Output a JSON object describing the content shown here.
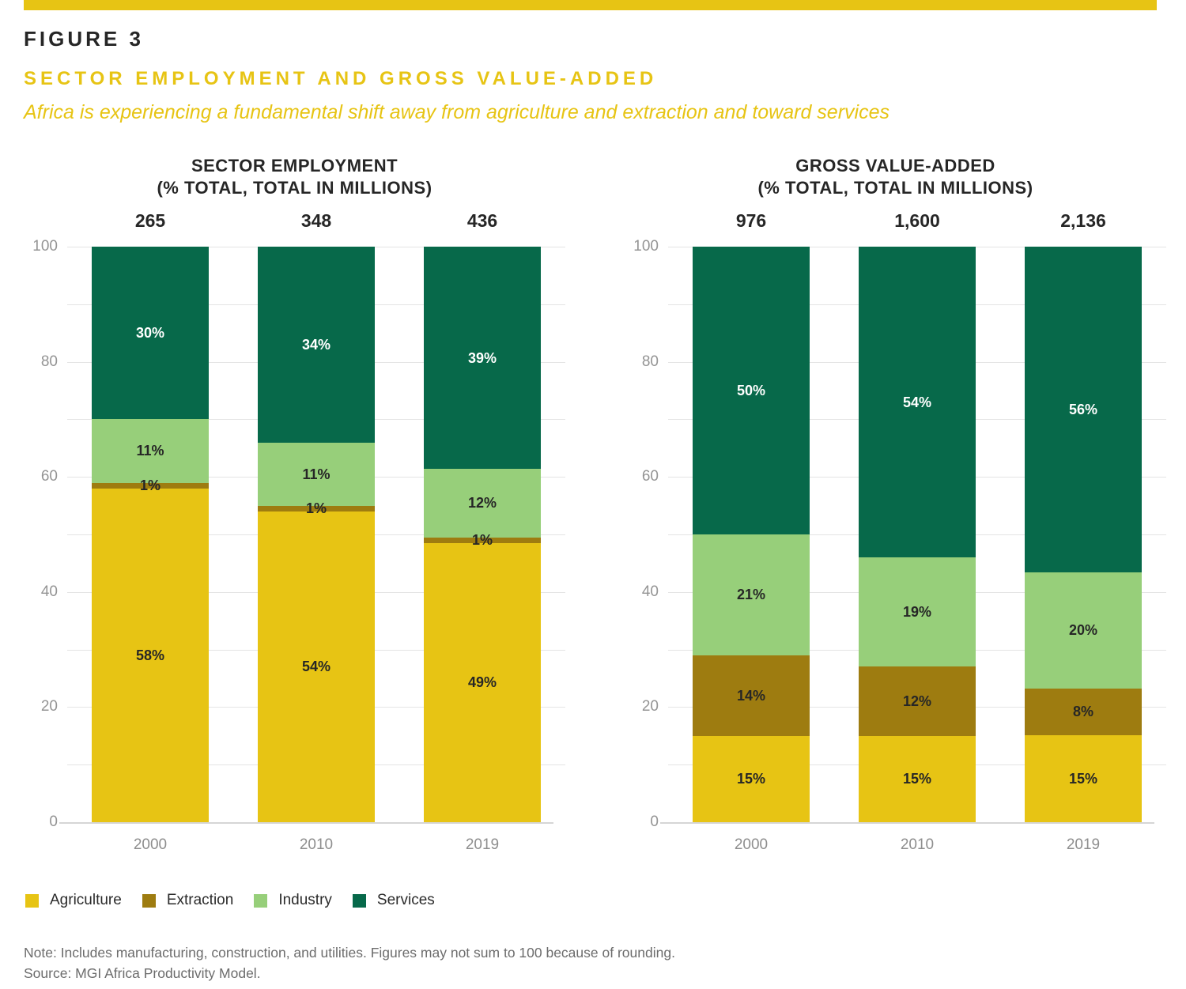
{
  "figure": {
    "label": "FIGURE 3",
    "title": "SECTOR EMPLOYMENT AND GROSS VALUE-ADDED",
    "subtitle": "Africa is experiencing a fundamental shift away from agriculture and extraction and toward services"
  },
  "colors": {
    "accent_yellow": "#e7c414",
    "agriculture": "#e7c414",
    "extraction": "#9e7c10",
    "industry": "#97cf7a",
    "services": "#07694a",
    "heading_text": "#262626",
    "axis_text": "#949494",
    "gridline": "#e4e4e4",
    "footer_text": "#6c6c6c"
  },
  "chart_data": [
    {
      "type": "bar",
      "stacked": true,
      "title": "SECTOR EMPLOYMENT",
      "units_line": "(% TOTAL, TOTAL IN MILLIONS)",
      "categories": [
        "2000",
        "2010",
        "2019"
      ],
      "totals": [
        "265",
        "348",
        "436"
      ],
      "series": [
        {
          "name": "Agriculture",
          "color": "#e7c414",
          "label_color": "#262626",
          "values": [
            58,
            54,
            49
          ]
        },
        {
          "name": "Extraction",
          "color": "#9e7c10",
          "label_color": "#262626",
          "values": [
            1,
            1,
            1
          ]
        },
        {
          "name": "Industry",
          "color": "#97cf7a",
          "label_color": "#262626",
          "values": [
            11,
            11,
            12
          ]
        },
        {
          "name": "Services",
          "color": "#07694a",
          "label_color": "#ffffff",
          "values": [
            30,
            34,
            39
          ]
        }
      ],
      "ylim": [
        0,
        100
      ],
      "ytick_labels": [
        0,
        20,
        40,
        60,
        80,
        100
      ],
      "grid_step": 10,
      "grid": true,
      "legend_position": "bottom"
    },
    {
      "type": "bar",
      "stacked": true,
      "title": "GROSS VALUE-ADDED",
      "units_line": "(% TOTAL, TOTAL IN MILLIONS)",
      "categories": [
        "2000",
        "2010",
        "2019"
      ],
      "totals": [
        "976",
        "1,600",
        "2,136"
      ],
      "series": [
        {
          "name": "Agriculture",
          "color": "#e7c414",
          "label_color": "#262626",
          "values": [
            15,
            15,
            15
          ]
        },
        {
          "name": "Extraction",
          "color": "#9e7c10",
          "label_color": "#262626",
          "values": [
            14,
            12,
            8
          ]
        },
        {
          "name": "Industry",
          "color": "#97cf7a",
          "label_color": "#262626",
          "values": [
            21,
            19,
            20
          ]
        },
        {
          "name": "Services",
          "color": "#07694a",
          "label_color": "#ffffff",
          "values": [
            50,
            54,
            56
          ]
        }
      ],
      "ylim": [
        0,
        100
      ],
      "ytick_labels": [
        0,
        20,
        40,
        60,
        80,
        100
      ],
      "grid_step": 10,
      "grid": true,
      "legend_position": "bottom"
    }
  ],
  "legend": {
    "items": [
      {
        "label": "Agriculture",
        "color": "#e7c414"
      },
      {
        "label": "Extraction",
        "color": "#9e7c10"
      },
      {
        "label": "Industry",
        "color": "#97cf7a"
      },
      {
        "label": "Services",
        "color": "#07694a"
      }
    ]
  },
  "footer": {
    "note": "Note: Includes manufacturing, construction, and utilities. Figures may not sum to 100 because of rounding.",
    "source": "Source: MGI Africa Productivity Model."
  }
}
